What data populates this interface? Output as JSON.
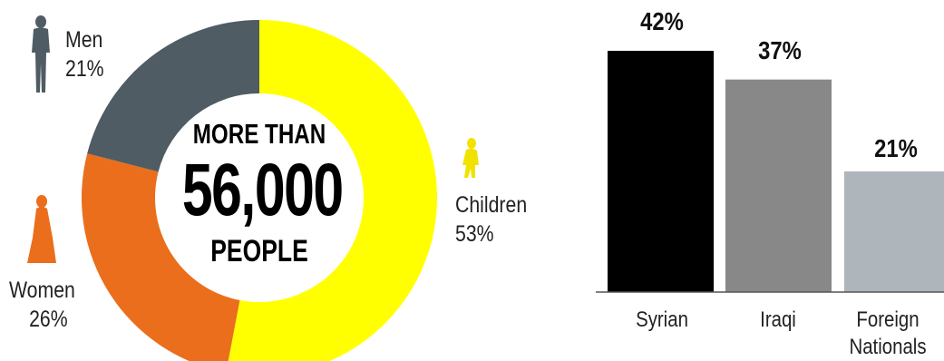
{
  "chart_data": [
    {
      "type": "pie",
      "style": "donut",
      "center_text": {
        "line1": "MORE THAN",
        "line2": "56,000",
        "line3": "PEOPLE"
      },
      "slices": [
        {
          "label": "Children",
          "value": 53,
          "value_label": "53%",
          "color": "#ffff00",
          "icon": "child-silhouette-icon"
        },
        {
          "label": "Women",
          "value": 26,
          "value_label": "26%",
          "color": "#ea6e1c",
          "icon": "woman-silhouette-icon"
        },
        {
          "label": "Men",
          "value": 21,
          "value_label": "21%",
          "color": "#505c64",
          "icon": "man-silhouette-icon"
        }
      ]
    },
    {
      "type": "bar",
      "categories": [
        "Syrian",
        "Iraqi",
        "Foreign Nationals"
      ],
      "values": [
        42,
        37,
        21
      ],
      "value_labels": [
        "42%",
        "37%",
        "21%"
      ],
      "colors": [
        "#000000",
        "#888888",
        "#aeb6bc"
      ],
      "ylim": [
        0,
        42
      ]
    }
  ]
}
